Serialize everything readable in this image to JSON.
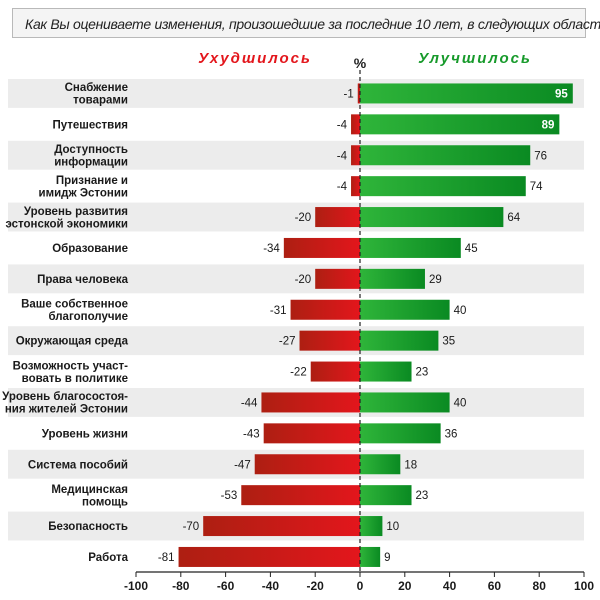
{
  "header": {
    "title": "Как Вы оцениваете изменения, произошедшие за последние 10 лет, в следующих областях:",
    "negative_label": "Ухудшилось",
    "positive_label": "Улучшилось",
    "unit": "%"
  },
  "colors": {
    "negative": "#e3161c",
    "positive": "#1aa62e",
    "band": "#ececec"
  },
  "chart_data": {
    "type": "bar",
    "orientation": "horizontal",
    "diverging": true,
    "categories": [
      [
        "Снабжение",
        "товарами"
      ],
      [
        "Путешествия"
      ],
      [
        "Доступность",
        "информации"
      ],
      [
        "Признание и",
        "имидж Эстонии"
      ],
      [
        "Уровень развития",
        "эстонской экономики"
      ],
      [
        "Образование"
      ],
      [
        "Права человека"
      ],
      [
        "Ваше собственное",
        "благополучие"
      ],
      [
        "Окружающая среда"
      ],
      [
        "Возможность участ-",
        "вовать в политике"
      ],
      [
        "Уровень благосостоя-",
        "ния жителей Эстонии"
      ],
      [
        "Уровень жизни"
      ],
      [
        "Система пособий"
      ],
      [
        "Медицинская",
        "помощь"
      ],
      [
        "Безопасность"
      ],
      [
        "Работа"
      ]
    ],
    "series": [
      {
        "name": "Ухудшилось",
        "values": [
          -1,
          -4,
          -4,
          -4,
          -20,
          -34,
          -20,
          -31,
          -27,
          -22,
          -44,
          -43,
          -47,
          -53,
          -70,
          -81
        ]
      },
      {
        "name": "Улучшилось",
        "values": [
          95,
          89,
          76,
          74,
          64,
          45,
          29,
          40,
          35,
          23,
          40,
          36,
          18,
          23,
          10,
          9
        ]
      }
    ],
    "xlim": [
      -100,
      100
    ],
    "xticks": [
      -100,
      -80,
      -60,
      -40,
      -20,
      0,
      20,
      40,
      60,
      80,
      100
    ],
    "grid": false
  }
}
